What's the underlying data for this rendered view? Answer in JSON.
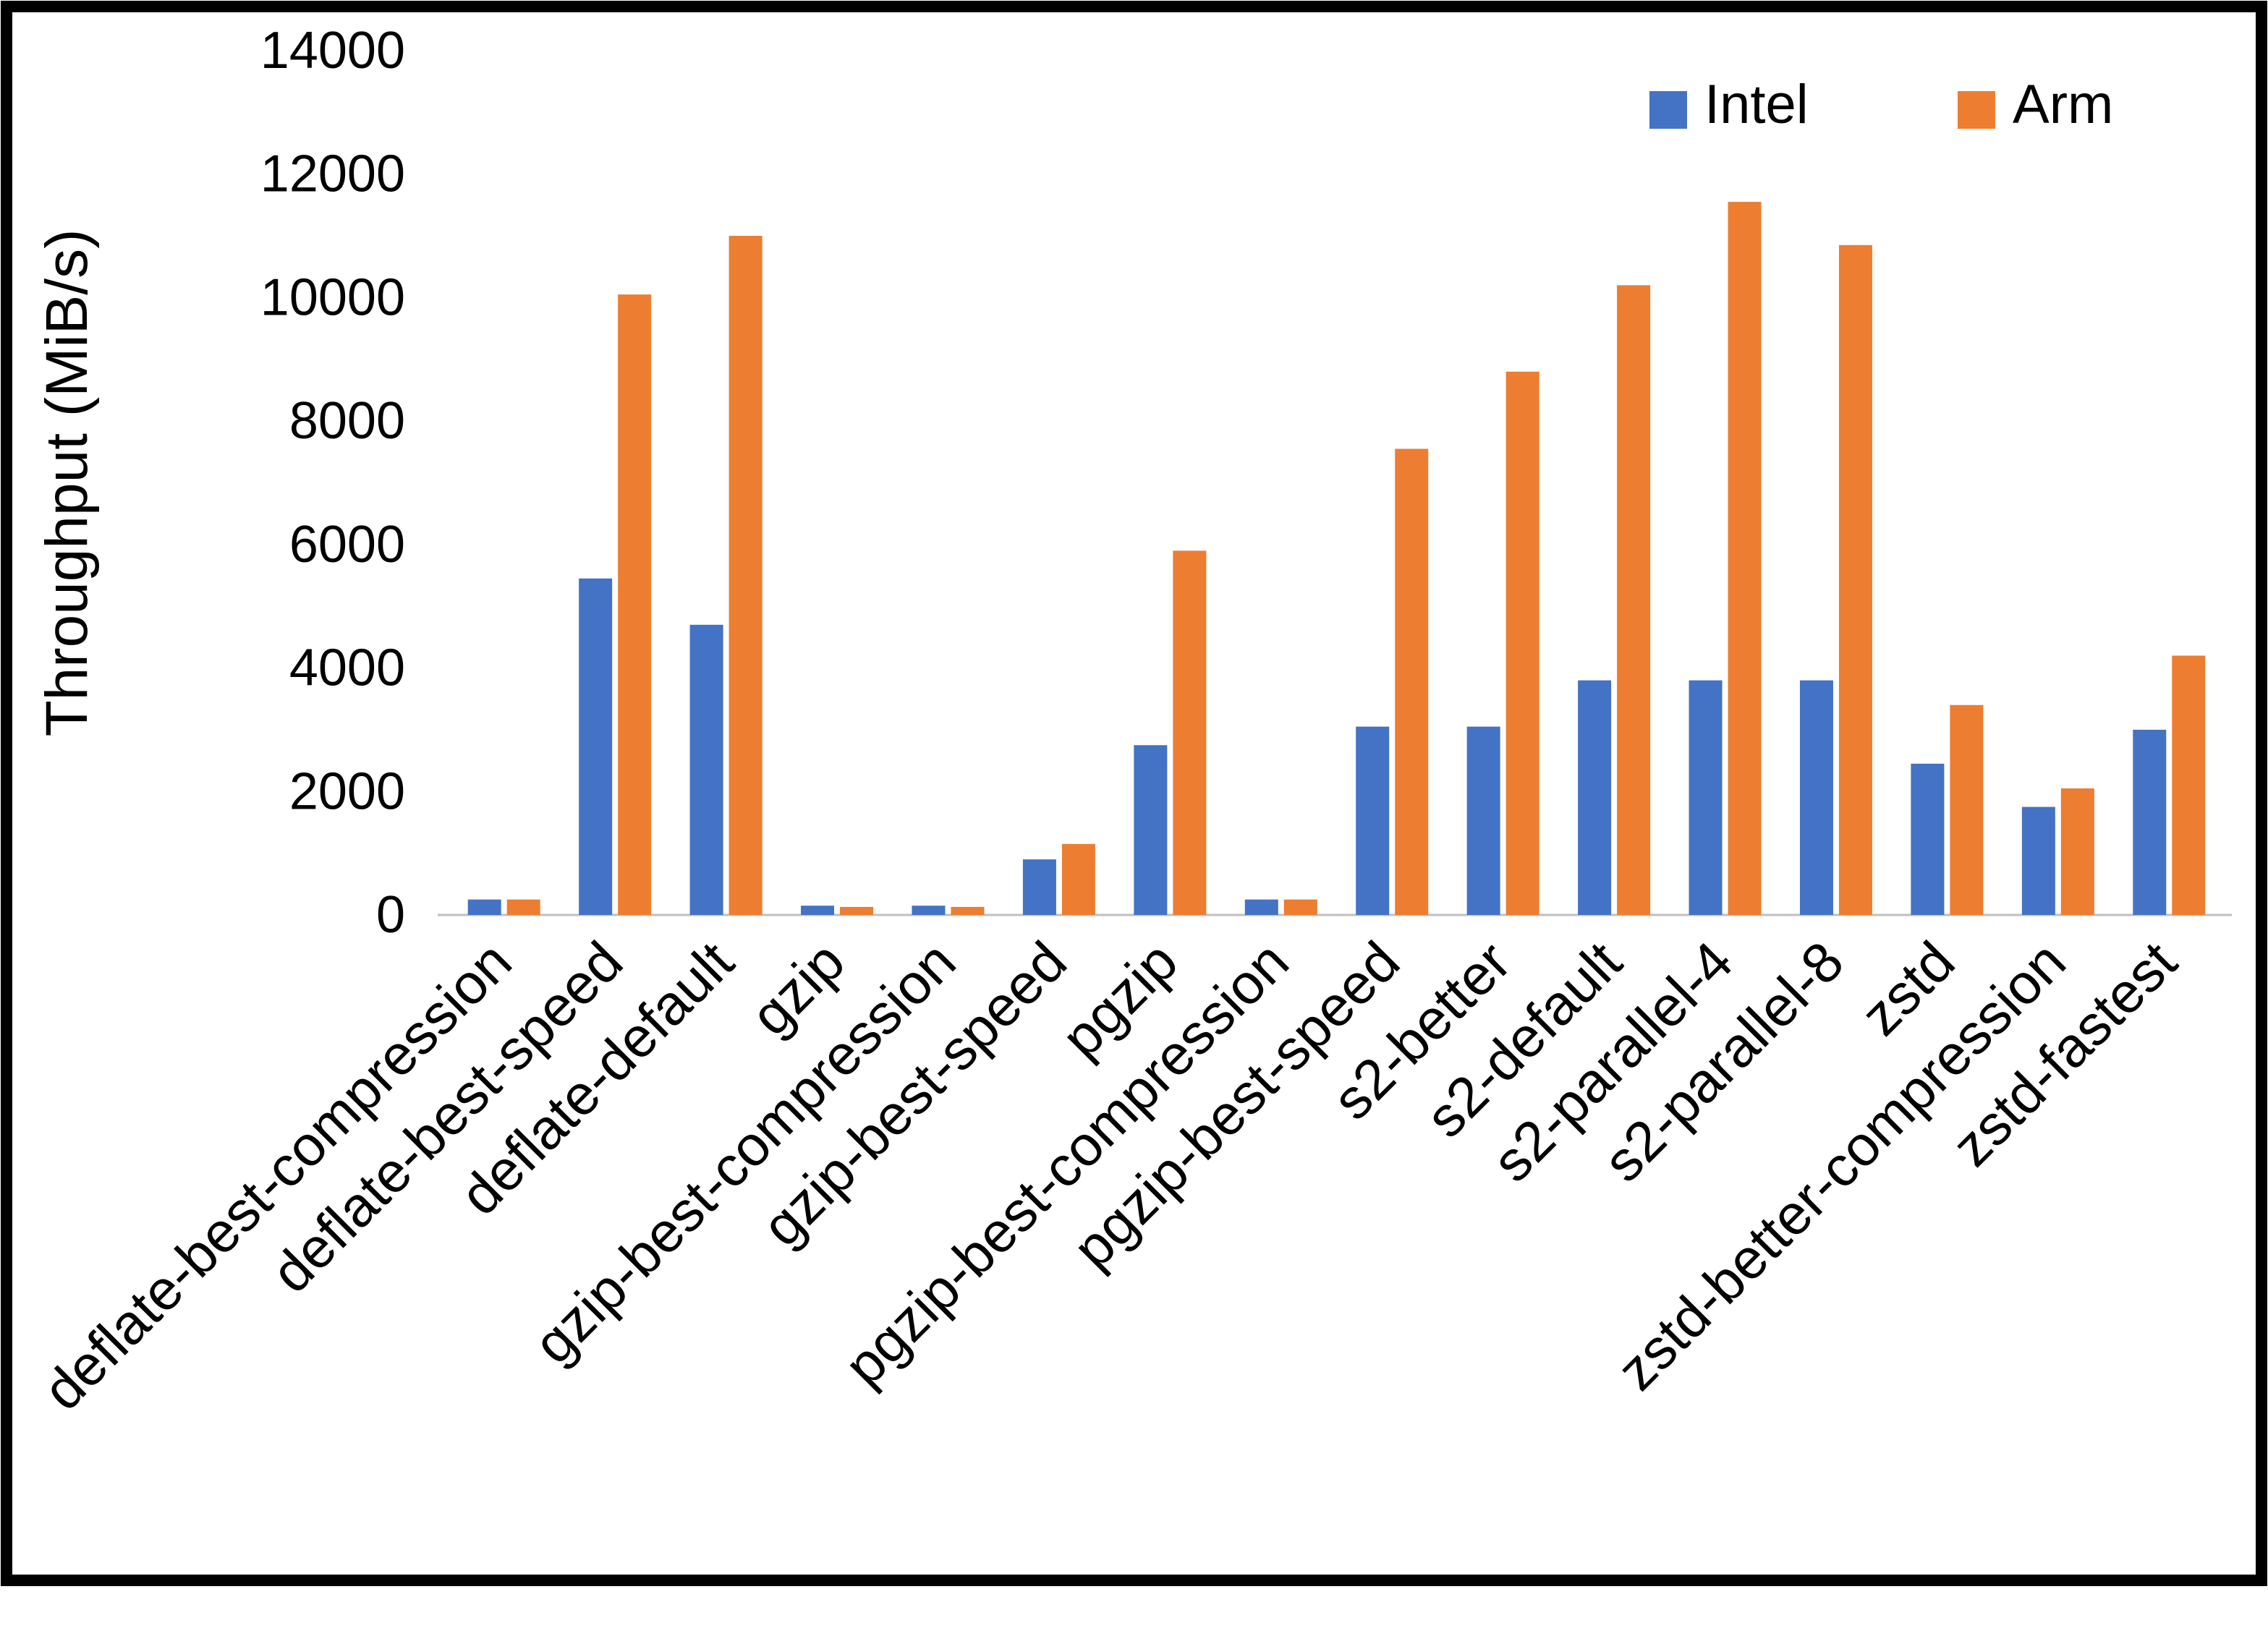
{
  "chart_data": {
    "type": "bar",
    "title": "",
    "xlabel": "",
    "ylabel": "Throughput (MiB/s)",
    "ylim": [
      0,
      14000
    ],
    "ytick_step": 2000,
    "grid": false,
    "legend_position": "top-right",
    "categories": [
      "deflate-best-compression",
      "deflate-best-speed",
      "deflate-default",
      "gzip",
      "gzip-best-compression",
      "gzip-best-speed",
      "pgzip",
      "pgzip-best-compression",
      "pgzip-best-speed",
      "s2-better",
      "s2-default",
      "s2-parallel-4",
      "s2-parallel-8",
      "zstd",
      "zstd-better-compression",
      "zstd-fastest"
    ],
    "series": [
      {
        "name": "Intel",
        "color": "#4472C4",
        "values": [
          250,
          5450,
          4700,
          150,
          150,
          900,
          2750,
          250,
          3050,
          3050,
          3800,
          3800,
          3800,
          2450,
          1750,
          3000
        ]
      },
      {
        "name": "Arm",
        "color": "#ED7D31",
        "values": [
          250,
          10050,
          11000,
          130,
          130,
          1150,
          5900,
          250,
          7550,
          8800,
          10200,
          11550,
          10850,
          3400,
          2050,
          4200
        ]
      }
    ]
  },
  "frame": {
    "border_color": "#000000",
    "background": "#ffffff"
  }
}
